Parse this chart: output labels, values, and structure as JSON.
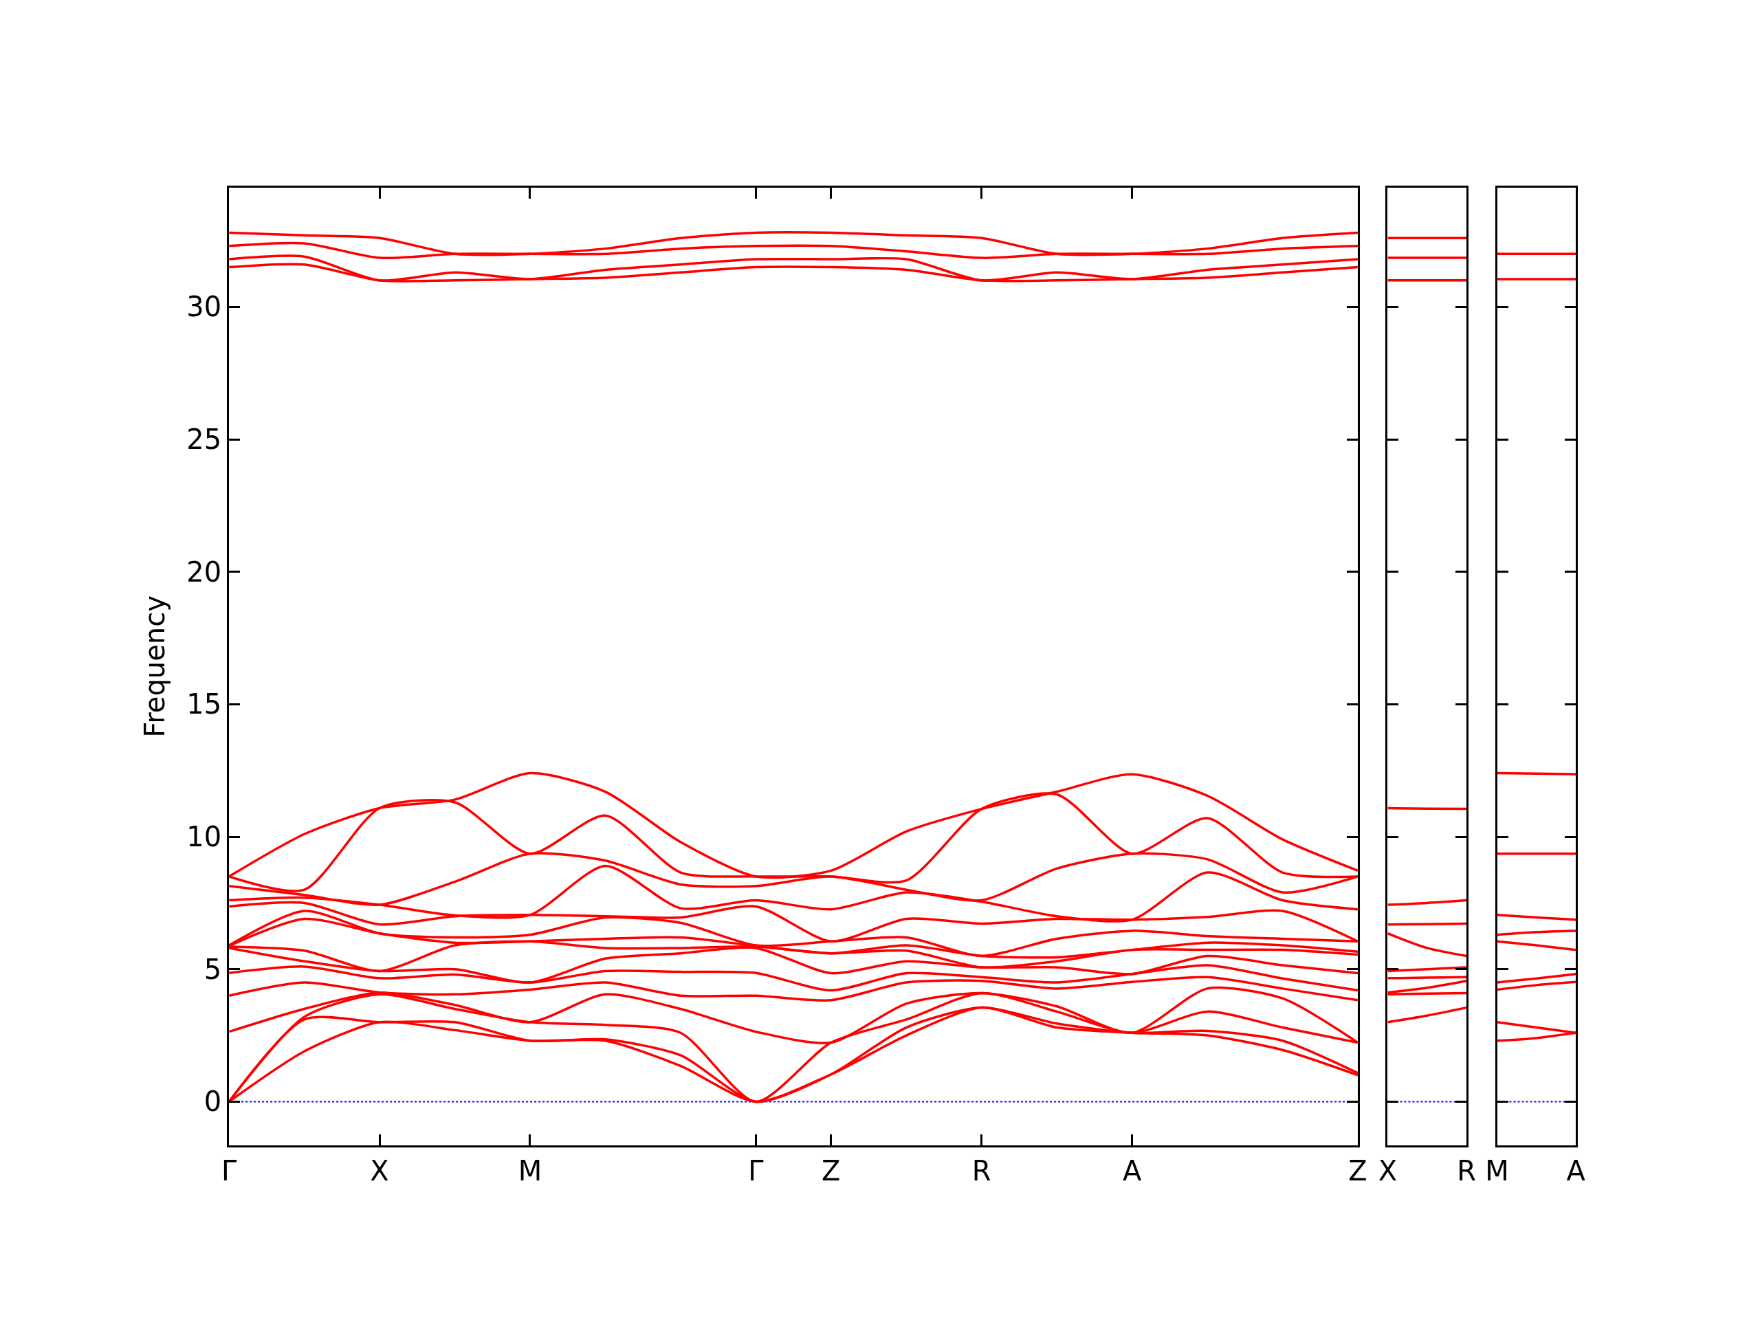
{
  "chart_data": [
    {
      "type": "line",
      "ylabel": "Frequency",
      "categories": [
        "Γ",
        null,
        "X",
        null,
        "M",
        null,
        null,
        "Γ",
        "Z",
        null,
        "R",
        null,
        "A",
        null,
        null,
        "Z"
      ],
      "ylim": [
        -1.65,
        34.5
      ],
      "yticks": [
        0,
        5,
        10,
        15,
        20,
        25,
        30
      ],
      "grid": false,
      "marker": "none",
      "line_style": "solid",
      "ref_lines": [
        {
          "axis": "y",
          "value": 0,
          "color": "#0000ff",
          "line_style": "dotted"
        }
      ],
      "series": [
        {
          "color": "#ff0000",
          "values": [
            0,
            1.9,
            3.0,
            2.7,
            2.3,
            2.3,
            1.35,
            0,
            1.03,
            2.5,
            3.55,
            2.8,
            2.6,
            2.5,
            1.95,
            1.0
          ]
        },
        {
          "color": "#ff0000",
          "values": [
            0,
            3.1,
            3.0,
            3.0,
            2.3,
            2.35,
            1.75,
            0,
            1.03,
            2.8,
            3.55,
            2.95,
            2.6,
            2.67,
            2.3,
            1.08
          ]
        },
        {
          "color": "#ff0000",
          "values": [
            0,
            3.2,
            4.05,
            3.5,
            3.0,
            2.9,
            2.6,
            0,
            2.23,
            3.1,
            4.1,
            3.4,
            2.6,
            3.4,
            2.8,
            2.23
          ]
        },
        {
          "color": "#ff0000",
          "values": [
            2.64,
            3.5,
            4.12,
            3.65,
            3.0,
            4.05,
            3.5,
            2.64,
            2.23,
            3.7,
            4.1,
            3.6,
            2.6,
            4.27,
            3.9,
            2.23
          ]
        },
        {
          "color": "#ff0000",
          "values": [
            4.0,
            4.5,
            4.12,
            4.05,
            4.23,
            4.5,
            4.0,
            4.0,
            3.83,
            4.5,
            4.56,
            4.27,
            4.52,
            4.7,
            4.27,
            3.83
          ]
        },
        {
          "color": "#ff0000",
          "values": [
            4.86,
            5.1,
            4.66,
            4.8,
            4.5,
            4.93,
            4.9,
            4.86,
            4.2,
            4.85,
            4.7,
            4.5,
            4.82,
            5.15,
            4.65,
            4.2
          ]
        },
        {
          "color": "#ff0000",
          "values": [
            5.8,
            5.3,
            4.93,
            5.0,
            4.5,
            5.4,
            5.6,
            5.8,
            4.85,
            5.3,
            5.07,
            5.07,
            4.82,
            5.5,
            5.15,
            4.85
          ]
        },
        {
          "color": "#ff0000",
          "values": [
            5.85,
            5.7,
            4.93,
            5.9,
            6.05,
            5.8,
            5.8,
            5.85,
            5.6,
            5.7,
            5.07,
            5.3,
            5.73,
            5.73,
            5.73,
            5.55
          ]
        },
        {
          "color": "#ff0000",
          "values": [
            5.88,
            6.9,
            6.35,
            6.0,
            6.05,
            6.15,
            6.2,
            5.88,
            5.6,
            5.9,
            5.5,
            5.45,
            5.73,
            6.0,
            5.9,
            5.66
          ]
        },
        {
          "color": "#ff0000",
          "values": [
            5.9,
            7.2,
            6.35,
            6.2,
            6.3,
            6.95,
            6.75,
            5.9,
            6.05,
            6.2,
            5.5,
            6.15,
            6.45,
            6.25,
            6.15,
            6.05
          ]
        },
        {
          "color": "#ff0000",
          "values": [
            7.37,
            7.5,
            6.69,
            7.0,
            7.05,
            7.0,
            6.95,
            7.37,
            6.05,
            6.9,
            6.72,
            6.9,
            6.87,
            6.97,
            7.2,
            6.05
          ]
        },
        {
          "color": "#ff0000",
          "values": [
            7.6,
            7.7,
            7.43,
            7.03,
            7.05,
            8.9,
            7.3,
            7.6,
            7.26,
            7.9,
            7.55,
            7.0,
            6.87,
            8.65,
            7.6,
            7.26
          ]
        },
        {
          "color": "#ff0000",
          "values": [
            8.14,
            7.8,
            7.43,
            8.3,
            9.36,
            9.1,
            8.2,
            8.14,
            8.5,
            8.0,
            7.6,
            8.8,
            9.36,
            9.15,
            7.9,
            8.5
          ]
        },
        {
          "color": "#ff0000",
          "values": [
            8.5,
            8.0,
            11.08,
            11.3,
            9.36,
            10.8,
            8.65,
            8.5,
            8.5,
            8.35,
            11.05,
            11.6,
            9.36,
            10.7,
            8.65,
            8.5
          ]
        },
        {
          "color": "#ff0000",
          "values": [
            8.5,
            10.1,
            11.08,
            11.4,
            12.4,
            11.7,
            9.8,
            8.5,
            8.72,
            10.2,
            11.05,
            11.7,
            12.36,
            11.55,
            9.9,
            8.72
          ]
        },
        {
          "color": "#ff0000",
          "values": [
            31.5,
            31.6,
            31.0,
            31.0,
            31.05,
            31.1,
            31.3,
            31.5,
            31.5,
            31.4,
            31.0,
            31.0,
            31.05,
            31.1,
            31.3,
            31.5
          ]
        },
        {
          "color": "#ff0000",
          "values": [
            31.8,
            31.9,
            31.0,
            31.3,
            31.05,
            31.4,
            31.6,
            31.8,
            31.8,
            31.8,
            31.0,
            31.3,
            31.05,
            31.4,
            31.6,
            31.8
          ]
        },
        {
          "color": "#ff0000",
          "values": [
            32.3,
            32.4,
            31.85,
            32.0,
            32.0,
            32.0,
            32.2,
            32.3,
            32.3,
            32.1,
            31.85,
            32.0,
            32.0,
            32.0,
            32.2,
            32.3
          ]
        },
        {
          "color": "#ff0000",
          "values": [
            32.8,
            32.7,
            32.6,
            32.0,
            32.0,
            32.2,
            32.6,
            32.8,
            32.8,
            32.7,
            32.6,
            32.0,
            32.0,
            32.2,
            32.6,
            32.8
          ]
        }
      ]
    },
    {
      "type": "line",
      "categories": [
        "X",
        null,
        "R"
      ],
      "ylim": [
        -1.65,
        34.5
      ],
      "yticks": [
        0,
        5,
        10,
        15,
        20,
        25,
        30
      ],
      "tick_labels": "x",
      "grid": false,
      "marker": "none",
      "line_style": "solid",
      "ref_lines": [
        {
          "axis": "y",
          "value": 0,
          "color": "#0000ff",
          "line_style": "dotted"
        }
      ],
      "series": [
        {
          "color": "#ff0000",
          "values": [
            3.0,
            3.25,
            3.55
          ]
        },
        {
          "color": "#ff0000",
          "values": [
            4.05,
            4.08,
            4.1
          ]
        },
        {
          "color": "#ff0000",
          "values": [
            4.12,
            4.3,
            4.56
          ]
        },
        {
          "color": "#ff0000",
          "values": [
            4.66,
            4.68,
            4.7
          ]
        },
        {
          "color": "#ff0000",
          "values": [
            4.93,
            5.0,
            5.07
          ]
        },
        {
          "color": "#ff0000",
          "values": [
            6.35,
            5.8,
            5.5
          ]
        },
        {
          "color": "#ff0000",
          "values": [
            6.69,
            6.7,
            6.72
          ]
        },
        {
          "color": "#ff0000",
          "values": [
            7.43,
            7.5,
            7.6
          ]
        },
        {
          "color": "#ff0000",
          "values": [
            11.08,
            11.06,
            11.05
          ]
        },
        {
          "color": "#ff0000",
          "values": [
            31.0,
            31.0,
            31.0
          ]
        },
        {
          "color": "#ff0000",
          "values": [
            31.85,
            31.85,
            31.85
          ]
        },
        {
          "color": "#ff0000",
          "values": [
            32.6,
            32.6,
            32.6
          ]
        }
      ]
    },
    {
      "type": "line",
      "categories": [
        "M",
        null,
        "A"
      ],
      "ylim": [
        -1.65,
        34.5
      ],
      "yticks": [
        0,
        5,
        10,
        15,
        20,
        25,
        30
      ],
      "tick_labels": "x",
      "grid": false,
      "marker": "none",
      "line_style": "solid",
      "ref_lines": [
        {
          "axis": "y",
          "value": 0,
          "color": "#0000ff",
          "line_style": "dotted"
        }
      ],
      "series": [
        {
          "color": "#ff0000",
          "values": [
            2.3,
            2.4,
            2.6
          ]
        },
        {
          "color": "#ff0000",
          "values": [
            3.0,
            2.8,
            2.6
          ]
        },
        {
          "color": "#ff0000",
          "values": [
            4.23,
            4.4,
            4.52
          ]
        },
        {
          "color": "#ff0000",
          "values": [
            4.5,
            4.65,
            4.82
          ]
        },
        {
          "color": "#ff0000",
          "values": [
            6.05,
            5.9,
            5.73
          ]
        },
        {
          "color": "#ff0000",
          "values": [
            6.3,
            6.4,
            6.45
          ]
        },
        {
          "color": "#ff0000",
          "values": [
            7.05,
            6.95,
            6.87
          ]
        },
        {
          "color": "#ff0000",
          "values": [
            9.36,
            9.36,
            9.36
          ]
        },
        {
          "color": "#ff0000",
          "values": [
            12.4,
            12.38,
            12.36
          ]
        },
        {
          "color": "#ff0000",
          "values": [
            31.05,
            31.05,
            31.05
          ]
        },
        {
          "color": "#ff0000",
          "values": [
            32.0,
            32.0,
            32.0
          ]
        }
      ]
    }
  ]
}
